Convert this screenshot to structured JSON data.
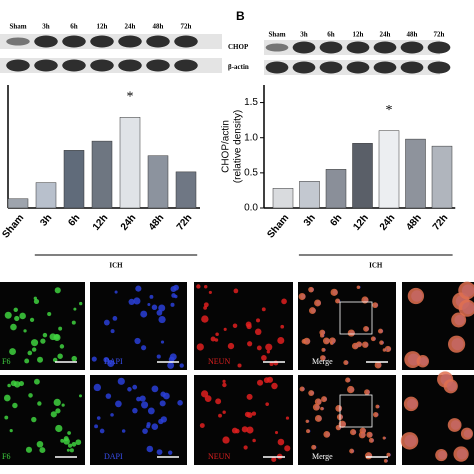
{
  "panel_label": "B",
  "blots": [
    {
      "lanes": [
        "Sham",
        "3h",
        "6h",
        "12h",
        "24h",
        "48h",
        "72h"
      ]
    },
    {
      "lanes": [
        "Sham",
        "3h",
        "6h",
        "12h",
        "24h",
        "48h",
        "72h"
      ],
      "rows": [
        "CHOP",
        "β-actin"
      ]
    }
  ],
  "chart_data": [
    {
      "type": "bar",
      "categories": [
        "Sham",
        "3h",
        "6h",
        "12h",
        "24h",
        "48h",
        "72h"
      ],
      "values": [
        0.12,
        0.33,
        0.75,
        0.87,
        1.18,
        0.68,
        0.47
      ],
      "colors": [
        "#9ea4ad",
        "#b8c0cc",
        "#606b7a",
        "#6e7681",
        "#e0e3e7",
        "#8c939e",
        "#6f7784"
      ],
      "ylim": [
        0,
        1.6
      ],
      "group_label": "ICH",
      "annotation": "*"
    },
    {
      "type": "bar",
      "categories": [
        "Sham",
        "3h",
        "6h",
        "12h",
        "24h",
        "48h",
        "72h"
      ],
      "values": [
        0.28,
        0.38,
        0.55,
        0.92,
        1.1,
        0.98,
        0.88
      ],
      "colors": [
        "#d9dbde",
        "#c3c8d0",
        "#8a8f99",
        "#5a5f68",
        "#eceef1",
        "#8e939c",
        "#b0b5bd"
      ],
      "ylim": [
        0,
        1.75
      ],
      "yticks": [
        {
          "value": 0,
          "label": "0.0"
        },
        {
          "value": 0.5,
          "label": "0.5"
        },
        {
          "value": 1,
          "label": "1.0"
        },
        {
          "value": 1.5,
          "label": "1.5"
        }
      ],
      "ylabel": [
        "CHOP/actin",
        "(relative density)"
      ],
      "group_label": "ICH",
      "annotation": "*"
    }
  ],
  "micrographs": {
    "channels": [
      "F6",
      "DAPI",
      "NEUN",
      "Merge"
    ]
  }
}
